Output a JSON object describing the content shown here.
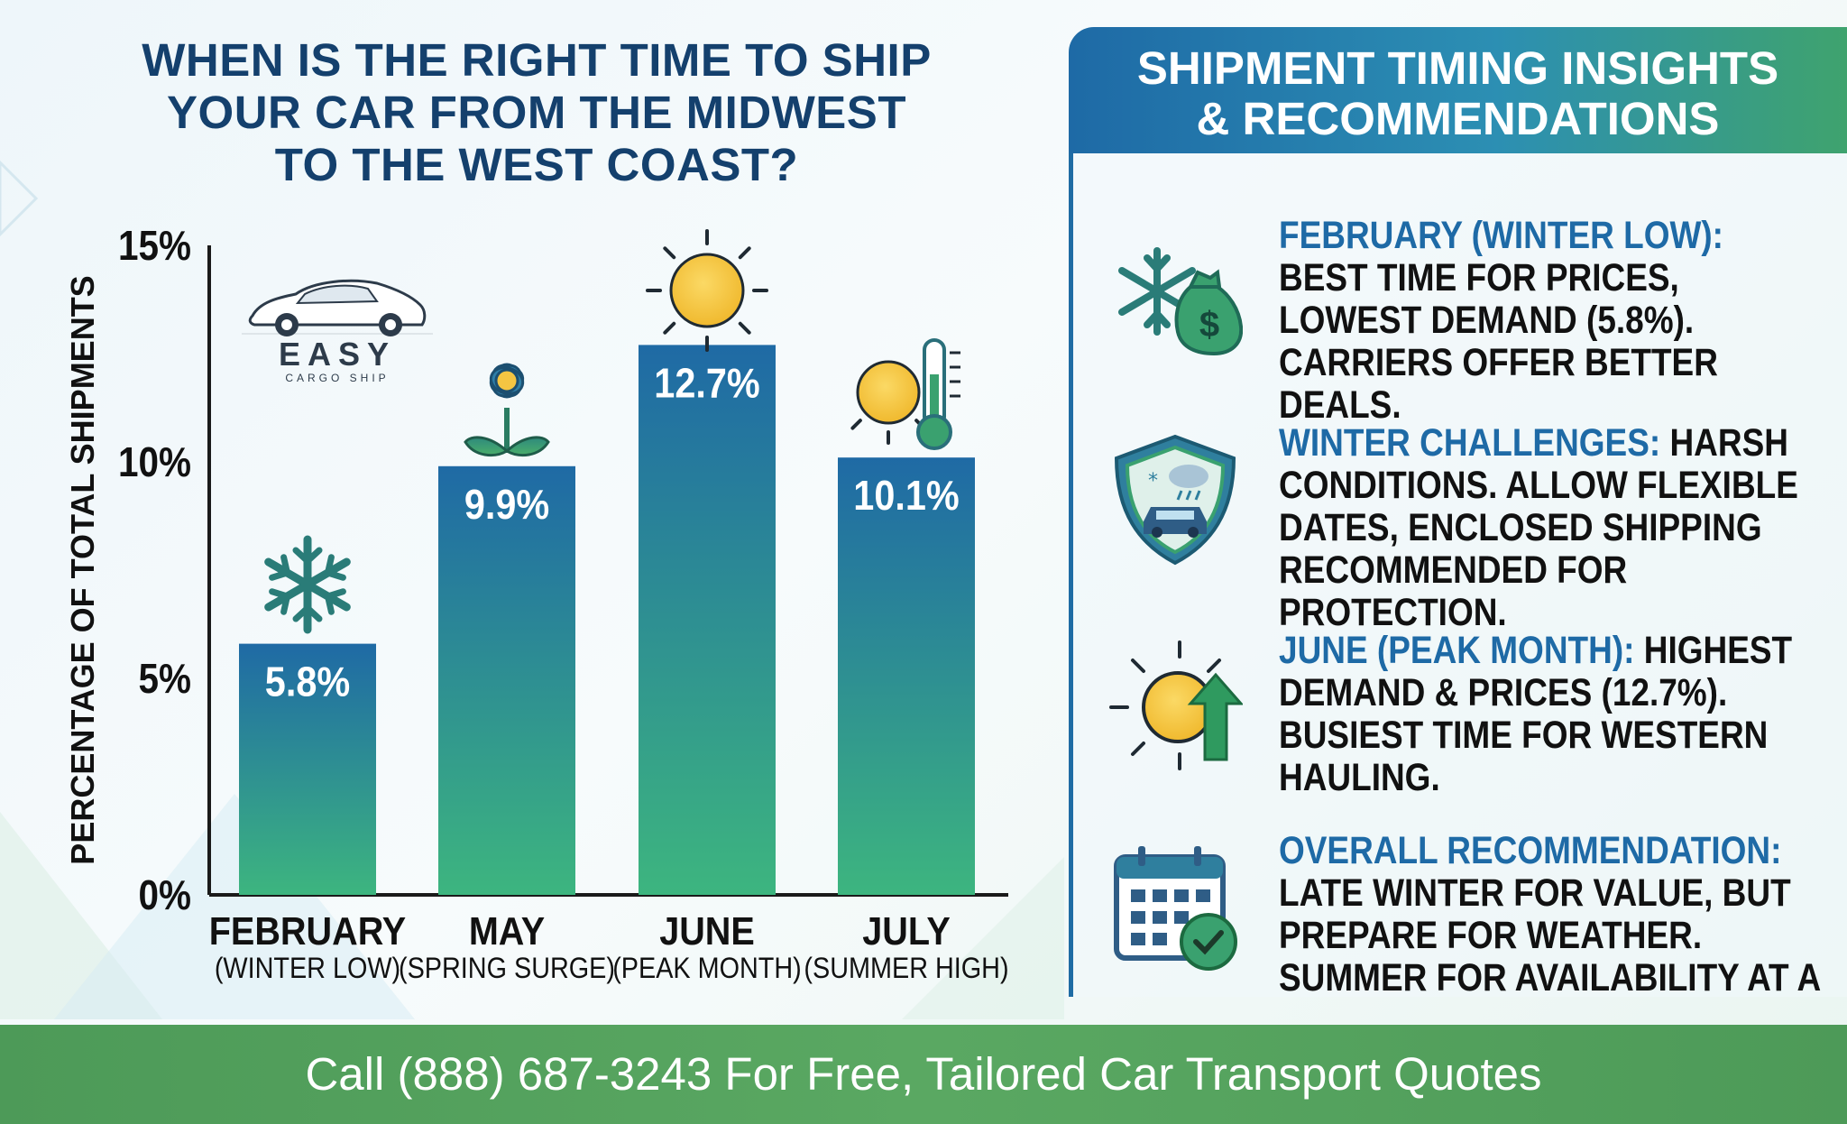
{
  "title_lines": [
    "WHEN IS THE RIGHT TIME TO SHIP",
    "YOUR CAR FROM THE MIDWEST",
    "TO THE WEST COAST?"
  ],
  "logo": {
    "brand": "EASY",
    "tagline": "CARGO SHIP"
  },
  "chart_data": {
    "type": "bar",
    "ylabel": "PERCENTAGE OF TOTAL SHIPMENTS",
    "xlabel": "",
    "ylim": [
      0,
      15
    ],
    "yticks": [
      0,
      5,
      10,
      15
    ],
    "ytick_labels": [
      "0%",
      "5%",
      "10%",
      "15%"
    ],
    "categories": [
      "FEBRUARY",
      "MAY",
      "JUNE",
      "JULY"
    ],
    "subcategories": [
      "(WINTER LOW)",
      "(SPRING SURGE)",
      "(PEAK MONTH)",
      "(SUMMER HIGH)"
    ],
    "values": [
      5.8,
      9.9,
      12.7,
      10.1
    ],
    "value_labels": [
      "5.8%",
      "9.9%",
      "12.7%",
      "10.1%"
    ],
    "bar_icons": [
      "snowflake-icon",
      "flower-icon",
      "sun-icon",
      "sun-thermometer-icon"
    ],
    "grid": false,
    "bar_gradient": {
      "top": "#1f6aa5",
      "bottom": "#3db57f"
    }
  },
  "panel": {
    "title_lines": [
      "SHIPMENT TIMING INSIGHTS",
      "& RECOMMENDATIONS"
    ],
    "insights": [
      {
        "icon": "snowflake-money-bag-icon",
        "title": "FEBRUARY (WINTER LOW):",
        "text": "BEST TIME FOR PRICES, LOWEST DEMAND (5.8%). CARRIERS OFFER BETTER DEALS."
      },
      {
        "icon": "shield-car-storm-icon",
        "title": "WINTER CHALLENGES:",
        "text": "HARSH CONDITIONS. ALLOW FLEXIBLE DATES, ENCLOSED SHIPPING RECOMMENDED FOR PROTECTION."
      },
      {
        "icon": "sun-up-arrow-icon",
        "title": "JUNE (PEAK MONTH):",
        "text": "HIGHEST DEMAND & PRICES (12.7%). BUSIEST TIME FOR WESTERN HAULING."
      },
      {
        "icon": "calendar-check-icon",
        "title": "OVERALL RECOMMENDATION:",
        "text": "LATE WINTER FOR VALUE, BUT PREPARE FOR WEATHER. SUMMER FOR AVAILABILITY AT A PREMIUM"
      }
    ]
  },
  "footer": {
    "text": "Call (888) 687-3243 For Free, Tailored Car Transport Quotes"
  },
  "colors": {
    "navy": "#14406d",
    "blue": "#1e6aa6",
    "green": "#3fa36e",
    "footer": "#55a35f",
    "sun": "#f4c542"
  }
}
